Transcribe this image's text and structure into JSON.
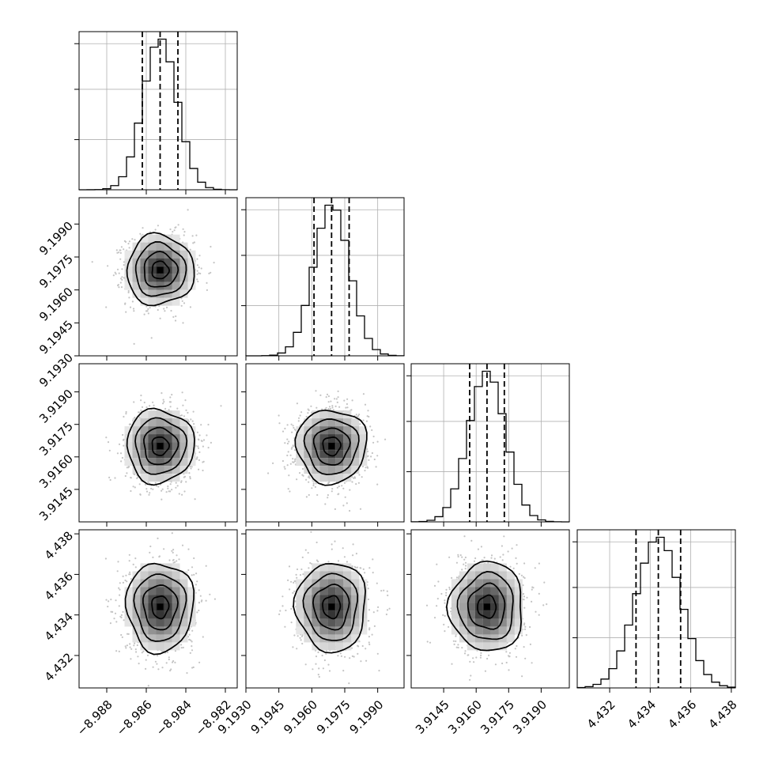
{
  "chart_data": {
    "type": "corner",
    "description_of_marks": "2D histograms with density contours below the diagonal; 1D histograms with dashed quantile lines on the diagonal",
    "grid": true,
    "parameters": [
      {
        "mean": -8.9853,
        "sd": 0.00085,
        "range": [
          -8.9894,
          -8.9814
        ],
        "ticks": [
          -8.988,
          -8.986,
          -8.984,
          -8.982
        ],
        "tick_labels": [
          "−8.988",
          "−8.986",
          "−8.984",
          "−8.982"
        ],
        "quantiles": [
          -8.9862,
          -8.9853,
          -8.9844
        ]
      },
      {
        "mean": 9.1969,
        "sd": 0.0008,
        "range": [
          9.193,
          9.2002
        ],
        "ticks": [
          9.193,
          9.1945,
          9.196,
          9.1975,
          9.199
        ],
        "tick_labels": [
          "9.1930",
          "9.1945",
          "9.1960",
          "9.1975",
          "9.1990"
        ],
        "quantiles": [
          9.1961,
          9.1969,
          9.1977
        ]
      },
      {
        "mean": 3.9165,
        "sd": 0.00085,
        "range": [
          3.913,
          3.9203
        ],
        "ticks": [
          3.9145,
          3.916,
          3.9175,
          3.919
        ],
        "tick_labels": [
          "3.9145",
          "3.9160",
          "3.9175",
          "3.9190"
        ],
        "quantiles": [
          3.9157,
          3.9165,
          3.9173
        ]
      },
      {
        "mean": 4.4344,
        "sd": 0.0011,
        "range": [
          4.4304,
          4.4382
        ],
        "ticks": [
          4.432,
          4.434,
          4.436,
          4.438
        ],
        "tick_labels": [
          "4.432",
          "4.434",
          "4.436",
          "4.438"
        ],
        "quantiles": [
          4.4333,
          4.4344,
          4.4355
        ]
      }
    ],
    "histogram_bins": 20,
    "contour_levels_sigma": [
      0.5,
      1.0,
      1.5,
      2.0
    ],
    "colors": {
      "marks": "#000000",
      "grid": "#b0b0b0",
      "scatter": "#b0b0b0",
      "background": "#ffffff"
    }
  }
}
